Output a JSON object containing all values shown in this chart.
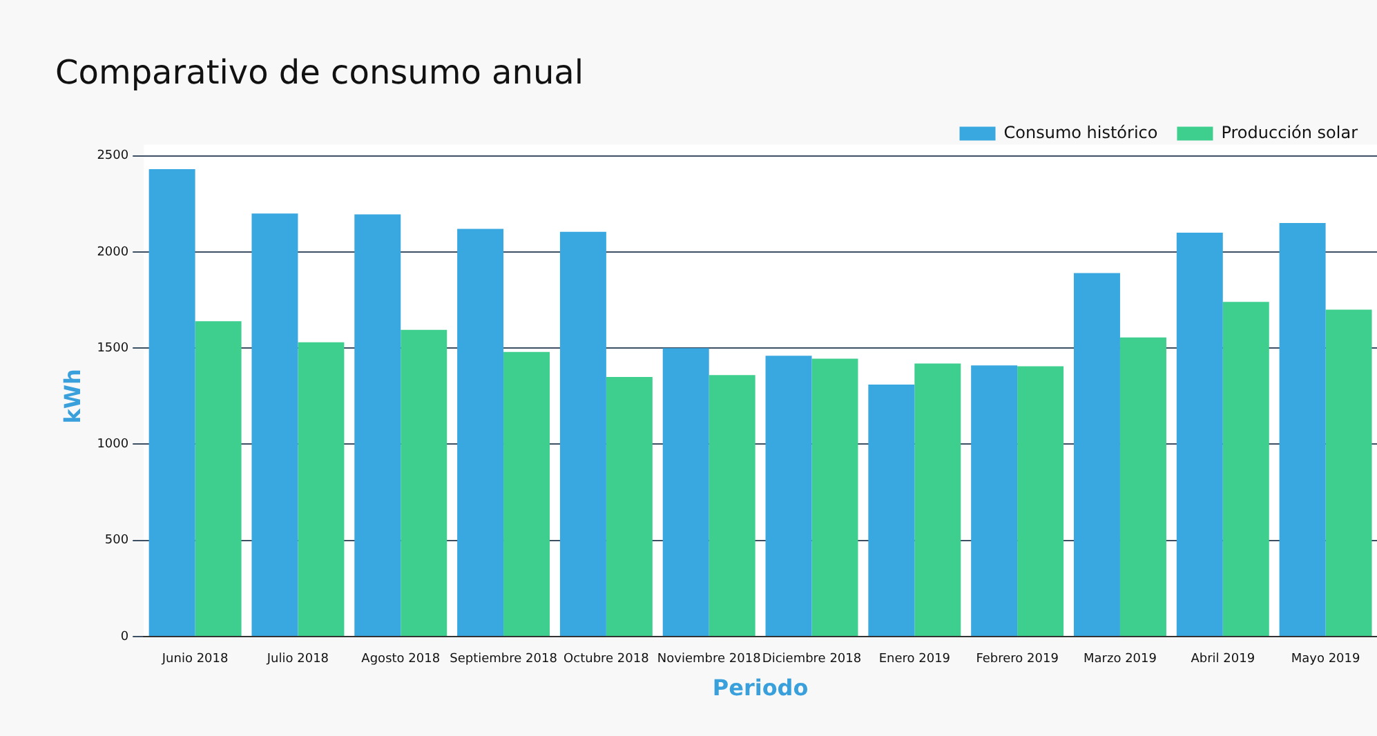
{
  "chart_data": {
    "type": "bar",
    "title": "Comparativo de consumo anual",
    "xlabel": "Periodo",
    "ylabel": "kWh",
    "categories": [
      "Junio 2018",
      "Julio 2018",
      "Agosto 2018",
      "Septiembre 2018",
      "Octubre 2018",
      "Noviembre 2018",
      "Diciembre 2018",
      "Enero 2019",
      "Febrero 2019",
      "Marzo 2019",
      "Abril 2019",
      "Mayo 2019"
    ],
    "series": [
      {
        "name": "Consumo histórico",
        "color": "#39a7e0",
        "values": [
          2430,
          2200,
          2195,
          2120,
          2105,
          1500,
          1460,
          1310,
          1410,
          1890,
          2100,
          2150
        ]
      },
      {
        "name": "Producción solar",
        "color": "#3ecf8e",
        "values": [
          1640,
          1530,
          1595,
          1480,
          1350,
          1360,
          1445,
          1420,
          1405,
          1555,
          1740,
          1700
        ]
      }
    ],
    "ylim": [
      0,
      2500
    ],
    "yticks": [
      0,
      500,
      1000,
      1500,
      2000,
      2500
    ],
    "grid": "y",
    "legend": "top right"
  }
}
